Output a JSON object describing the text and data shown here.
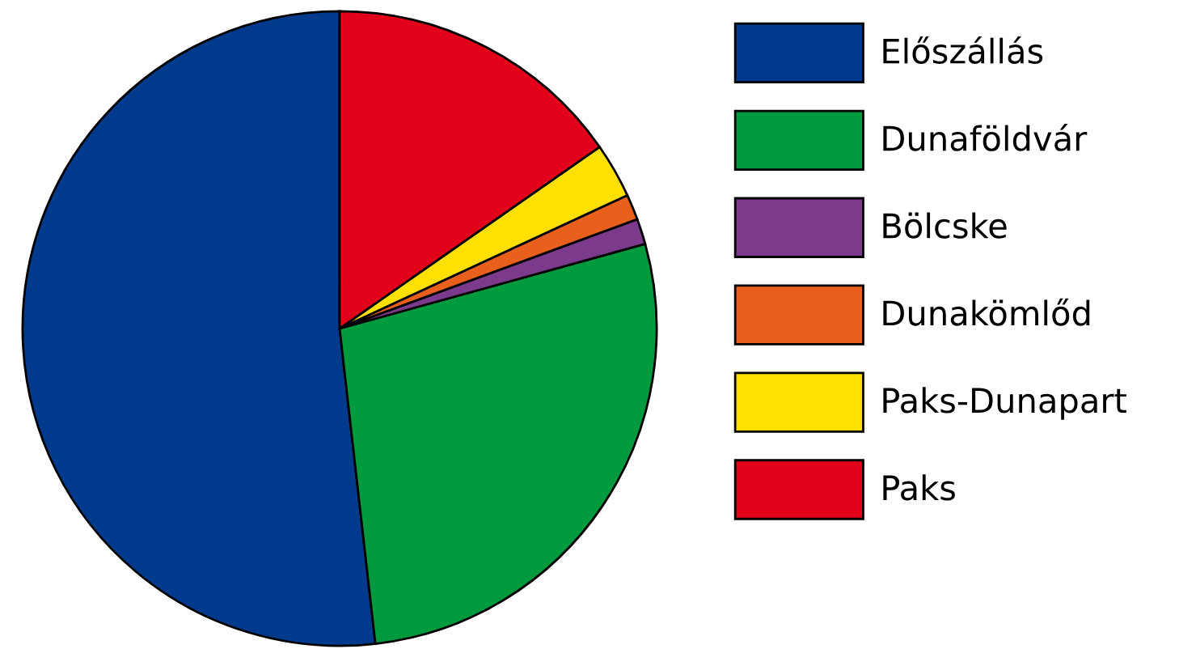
{
  "chart_data": {
    "type": "pie",
    "categories": [
      "Előszállás",
      "Dunaföldvár",
      "Bölcske",
      "Dunakömlőd",
      "Paks-Dunapart",
      "Paks"
    ],
    "values": [
      51.8,
      27.5,
      1.3,
      1.3,
      2.8,
      15.3
    ],
    "colors": [
      "#003a8c",
      "#009a3e",
      "#7b3a8c",
      "#e8601c",
      "#ffe000",
      "#e2001a"
    ],
    "legend": "right"
  }
}
